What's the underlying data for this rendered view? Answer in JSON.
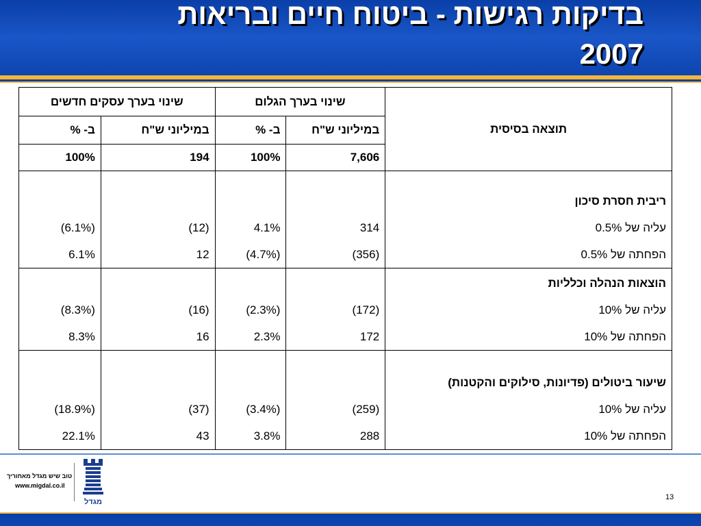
{
  "slide": {
    "title_line1": "בדיקות רגישות - ביטוח חיים ובריאות",
    "title_line2": "2007",
    "page_number": "13"
  },
  "table": {
    "group_headers": {
      "new_business": "שינוי בערך עסקים חדשים",
      "embedded": "שינוי בערך הגלום"
    },
    "sub_headers": {
      "percent": "ב- %",
      "millions": "במיליוני ש\"ח"
    },
    "basis_label": "תוצאה בסיסית",
    "base": {
      "nb_pct": "100%",
      "nb_mil": "194",
      "ev_pct": "100%",
      "ev_mil": "7,606"
    },
    "groups": [
      {
        "title": "ריבית חסרת סיכון",
        "rows": [
          {
            "label": "עליה של 0.5%",
            "nb_pct": "(6.1%)",
            "nb_mil": "(12)",
            "ev_pct": "4.1%",
            "ev_mil": "314"
          },
          {
            "label": "הפחתה של 0.5%",
            "nb_pct": "6.1%",
            "nb_mil": "12",
            "ev_pct": "(4.7%)",
            "ev_mil": "(356)"
          }
        ]
      },
      {
        "title": "הוצאות הנהלה וכלליות",
        "rows": [
          {
            "label": "עליה של 10%",
            "nb_pct": "(8.3%)",
            "nb_mil": "(16)",
            "ev_pct": "(2.3%)",
            "ev_mil": "(172)"
          },
          {
            "label": "הפחתה של 10%",
            "nb_pct": "8.3%",
            "nb_mil": "16",
            "ev_pct": "2.3%",
            "ev_mil": "172"
          }
        ]
      },
      {
        "title": "שיעור ביטולים (פדיונות, סילוקים והקטנות)",
        "rows": [
          {
            "label": "עליה של 10%",
            "nb_pct": "(18.9%)",
            "nb_mil": "(37)",
            "ev_pct": "(3.4%)",
            "ev_mil": "(259)"
          },
          {
            "label": "הפחתה של 10%",
            "nb_pct": "22.1%",
            "nb_mil": "43",
            "ev_pct": "3.8%",
            "ev_mil": "288"
          }
        ]
      }
    ]
  },
  "footer": {
    "slogan": "טוב שיש מגדל מאחוריך",
    "url": "www.migdal.co.il",
    "logo_word": "מגדל",
    "brand_color": "#1a3d8f"
  }
}
